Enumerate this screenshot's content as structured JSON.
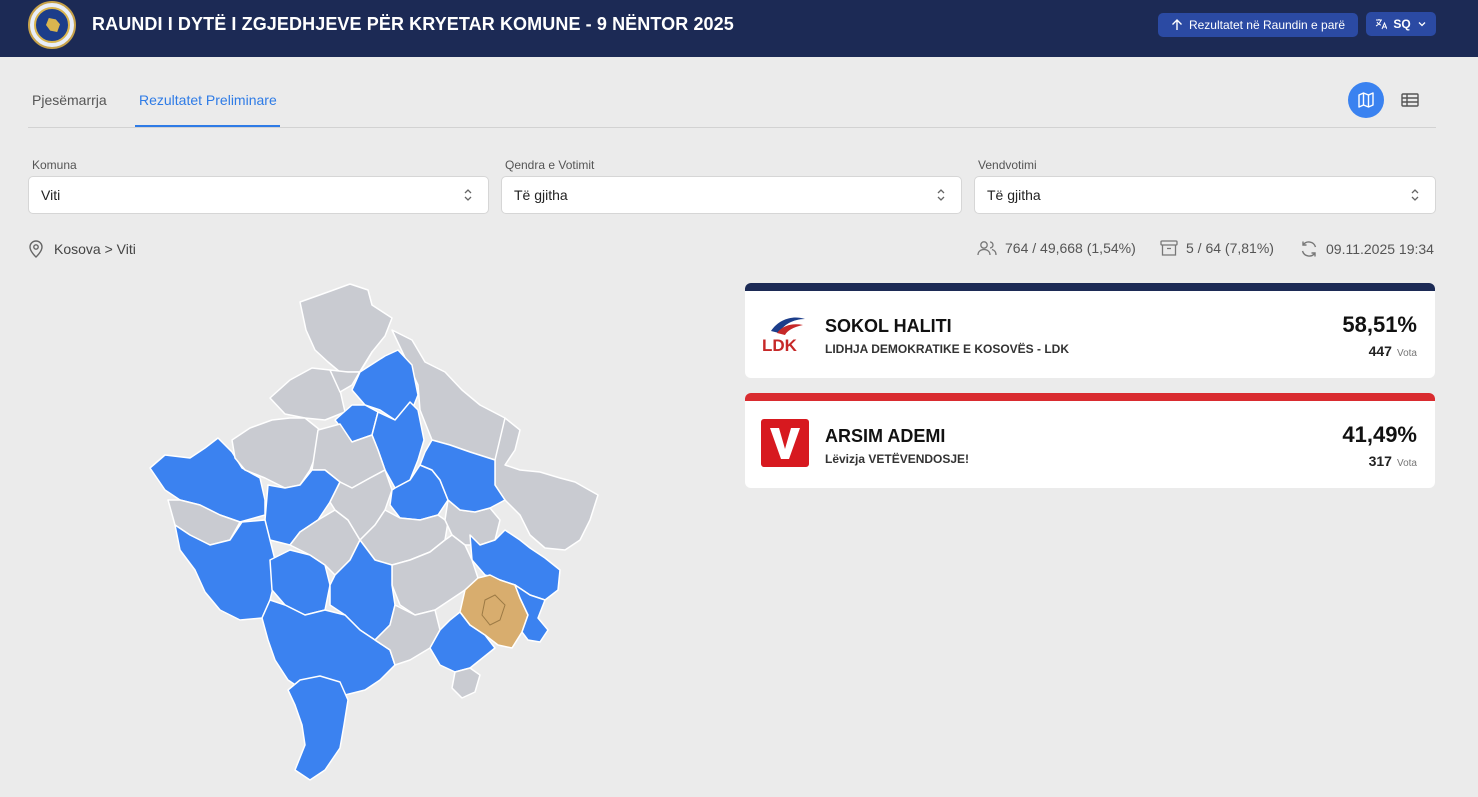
{
  "header": {
    "title": "RAUNDI I DYTË I ZGJEDHJEVE PËR KRYETAR KOMUNE - 9 NËNTOR 2025",
    "prev_round_label": "Rezultatet në Raundin e parë",
    "language": "SQ"
  },
  "tabs": [
    {
      "label": "Pjesëmarrja",
      "active": false
    },
    {
      "label": "Rezultatet Preliminare",
      "active": true
    }
  ],
  "view_toggle": {
    "active": "map-icon",
    "inactive": "table-icon"
  },
  "filters": {
    "municipality": {
      "label": "Komuna",
      "value": "Viti"
    },
    "voting_center": {
      "label": "Qendra e Votimit",
      "value": "Të gjitha"
    },
    "polling_station": {
      "label": "Vendvotimi",
      "value": "Të gjitha"
    }
  },
  "breadcrumb": "Kosova > Viti",
  "stats": {
    "turnout": "764 / 49,668 (1,54%)",
    "stations": "5 / 64 (7,81%)",
    "updated": "09.11.2025 19:34"
  },
  "colors": {
    "ldk_blue": "#3b82f0",
    "vv_red": "#d92b2f",
    "selected_gold": "#d8ad6e",
    "neutral_gray": "#c9cbd1",
    "header_navy": "#1c2a55"
  },
  "candidates": [
    {
      "name": "SOKOL HALITI",
      "party": "LIDHJA DEMOKRATIKE E KOSOVËS - LDK",
      "percent": "58,51%",
      "votes": "447",
      "votes_label": "Vota",
      "bar_color": "#1c2a55",
      "logo": "LDK"
    },
    {
      "name": "ARSIM ADEMI",
      "party": "Lëvizja VETËVENDOSJE!",
      "percent": "41,49%",
      "votes": "317",
      "votes_label": "Vota",
      "bar_color": "#d92b2f",
      "logo": "V"
    }
  ]
}
